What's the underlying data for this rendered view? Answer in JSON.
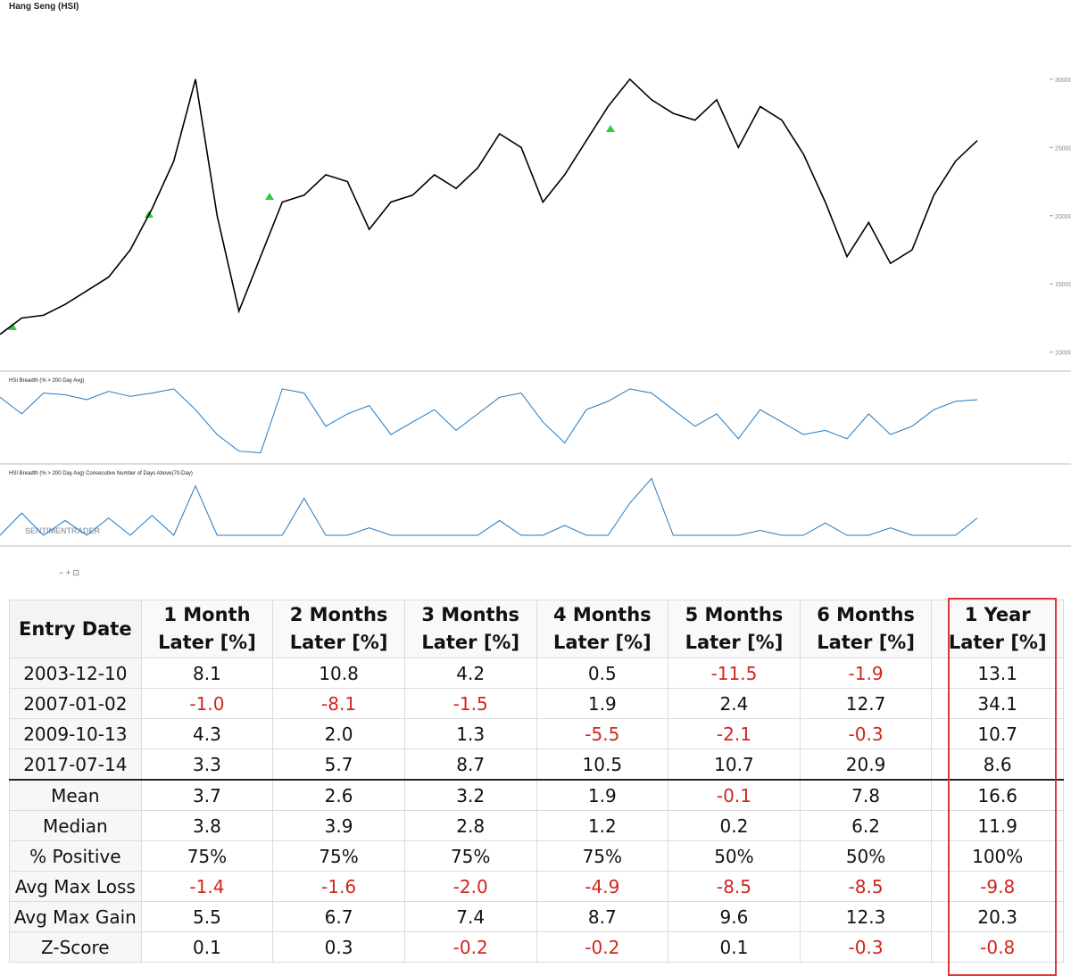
{
  "chart_data": [
    {
      "type": "line",
      "title": "Hang Seng (HSI)",
      "color": "#000000",
      "ylim": [
        9000,
        34500
      ],
      "yticks": [
        10000,
        15000,
        20000,
        25000,
        30000
      ],
      "values": [
        11300,
        12500,
        12700,
        13500,
        14500,
        15500,
        17500,
        20500,
        24000,
        30000,
        20000,
        13000,
        17000,
        21000,
        21500,
        23000,
        22500,
        19000,
        21000,
        21500,
        23000,
        22000,
        23500,
        26000,
        25000,
        21000,
        23000,
        25500,
        28000,
        30000,
        28500,
        27500,
        27000,
        28500,
        25000,
        28000,
        27000,
        24500,
        21000,
        17000,
        19500,
        16500,
        17500,
        21500,
        24000,
        25500
      ]
    },
    {
      "type": "line",
      "title": "HSI Breadth (% > 200 Day Avg)",
      "color": "#1f78c1",
      "ylim": [
        0,
        100
      ],
      "values": [
        75,
        55,
        80,
        78,
        72,
        82,
        76,
        80,
        85,
        60,
        30,
        10,
        8,
        85,
        80,
        40,
        55,
        65,
        30,
        45,
        60,
        35,
        55,
        75,
        80,
        45,
        20,
        60,
        70,
        85,
        80,
        60,
        40,
        55,
        25,
        60,
        45,
        30,
        35,
        25,
        55,
        30,
        40,
        60,
        70,
        72
      ]
    },
    {
      "type": "line",
      "title": "HSI Breadth (% > 200 Day Avg) Consecutive Number of Days Above(70-Day)",
      "color": "#1f78c1",
      "ylim": [
        0,
        260
      ],
      "note": "SENTIMENTRADER",
      "values": [
        0,
        90,
        0,
        60,
        0,
        70,
        0,
        80,
        0,
        200,
        0,
        0,
        0,
        0,
        150,
        0,
        0,
        30,
        0,
        0,
        0,
        0,
        0,
        60,
        0,
        0,
        40,
        0,
        0,
        130,
        230,
        0,
        0,
        0,
        0,
        20,
        0,
        0,
        50,
        0,
        0,
        30,
        0,
        0,
        0,
        70
      ]
    }
  ],
  "table": {
    "header": [
      "Entry Date",
      "1 Month\nLater [%]",
      "2 Months\nLater [%]",
      "3 Months\nLater [%]",
      "4 Months\nLater [%]",
      "5 Months\nLater [%]",
      "6 Months\nLater [%]",
      "1 Year\nLater [%]"
    ],
    "rows": [
      [
        "2003-12-10",
        "8.1",
        "10.8",
        "4.2",
        "0.5",
        "-11.5",
        "-1.9",
        "13.1"
      ],
      [
        "2007-01-02",
        "-1.0",
        "-8.1",
        "-1.5",
        "1.9",
        "2.4",
        "12.7",
        "34.1"
      ],
      [
        "2009-10-13",
        "4.3",
        "2.0",
        "1.3",
        "-5.5",
        "-2.1",
        "-0.3",
        "10.7"
      ],
      [
        "2017-07-14",
        "3.3",
        "5.7",
        "8.7",
        "10.5",
        "10.7",
        "20.9",
        "8.6"
      ],
      [
        "Mean",
        "3.7",
        "2.6",
        "3.2",
        "1.9",
        "-0.1",
        "7.8",
        "16.6"
      ],
      [
        "Median",
        "3.8",
        "3.9",
        "2.8",
        "1.2",
        "0.2",
        "6.2",
        "11.9"
      ],
      [
        "% Positive",
        "75%",
        "75%",
        "75%",
        "75%",
        "50%",
        "50%",
        "100%"
      ],
      [
        "Avg Max Loss",
        "-1.4",
        "-1.6",
        "-2.0",
        "-4.9",
        "-8.5",
        "-8.5",
        "-9.8"
      ],
      [
        "Avg Max Gain",
        "5.5",
        "6.7",
        "7.4",
        "8.7",
        "9.6",
        "12.3",
        "20.3"
      ],
      [
        "Z-Score",
        "0.1",
        "0.3",
        "-0.2",
        "-0.2",
        "0.1",
        "-0.3",
        "-0.8"
      ]
    ]
  }
}
